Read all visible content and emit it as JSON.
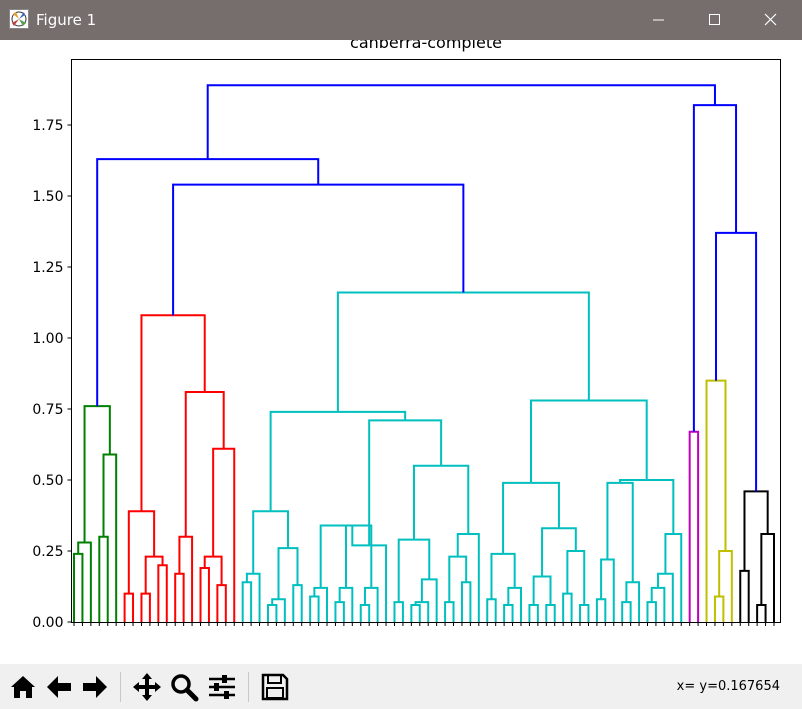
{
  "window": {
    "title": "Figure 1"
  },
  "toolbar": {
    "buttons": [
      {
        "name": "home",
        "icon": "home-icon"
      },
      {
        "name": "back",
        "icon": "arrow-left-icon"
      },
      {
        "name": "forward",
        "icon": "arrow-right-icon"
      },
      {
        "name": "pan",
        "icon": "move-icon"
      },
      {
        "name": "zoom",
        "icon": "zoom-icon"
      },
      {
        "name": "configure",
        "icon": "sliders-icon"
      },
      {
        "name": "save",
        "icon": "save-icon"
      }
    ],
    "status": "x= y=0.167654"
  },
  "chart_data": {
    "type": "dendrogram",
    "title": "canberra-complete",
    "ylim": [
      0,
      1.97
    ],
    "yticks": [
      "0.00",
      "0.25",
      "0.50",
      "0.75",
      "1.00",
      "1.25",
      "1.50",
      "1.75"
    ],
    "colors": {
      "green": "#008000",
      "red": "#ff0000",
      "cyan": "#00bfbf",
      "magenta": "#bf00bf",
      "yellow": "#bfbf00",
      "black": "#000000",
      "blue": "#0000ff"
    },
    "n_leaves": 84,
    "merges": [
      {
        "l": 0,
        "r": 1,
        "h": 0.24,
        "c": "green"
      },
      {
        "l": "n0",
        "r": 2,
        "h": 0.28,
        "c": "green"
      },
      {
        "l": 3,
        "r": 4,
        "h": 0.3,
        "c": "green"
      },
      {
        "l": 5,
        "r": "n2",
        "h": 0.59,
        "c": "green"
      },
      {
        "l": "n1",
        "r": "n3",
        "h": 0.76,
        "c": "green"
      },
      {
        "l": 6,
        "r": 7,
        "h": 0.1,
        "c": "red"
      },
      {
        "l": 8,
        "r": 9,
        "h": 0.1,
        "c": "red"
      },
      {
        "l": 10,
        "r": 11,
        "h": 0.2,
        "c": "red"
      },
      {
        "l": "n6",
        "r": "n7",
        "h": 0.23,
        "c": "red"
      },
      {
        "l": "n5",
        "r": "n8",
        "h": 0.39,
        "c": "red"
      },
      {
        "l": 12,
        "r": 13,
        "h": 0.17,
        "c": "red"
      },
      {
        "l": "n10",
        "r": 14,
        "h": 0.3,
        "c": "red"
      },
      {
        "l": 15,
        "r": 16,
        "h": 0.19,
        "c": "red"
      },
      {
        "l": 17,
        "r": 18,
        "h": 0.13,
        "c": "red"
      },
      {
        "l": "n12",
        "r": "n13",
        "h": 0.23,
        "c": "red"
      },
      {
        "l": "n14",
        "r": 19,
        "h": 0.61,
        "c": "red"
      },
      {
        "l": "n11",
        "r": "n15",
        "h": 0.81,
        "c": "red"
      },
      {
        "l": "n9",
        "r": "n16",
        "h": 1.08,
        "c": "red"
      },
      {
        "l": 20,
        "r": 21,
        "h": 0.14,
        "c": "cyan"
      },
      {
        "l": "n18",
        "r": 22,
        "h": 0.17,
        "c": "cyan"
      },
      {
        "l": 23,
        "r": 24,
        "h": 0.06,
        "c": "cyan"
      },
      {
        "l": "n20",
        "r": 25,
        "h": 0.08,
        "c": "cyan"
      },
      {
        "l": 26,
        "r": 27,
        "h": 0.13,
        "c": "cyan"
      },
      {
        "l": "n21",
        "r": "n22",
        "h": 0.26,
        "c": "cyan"
      },
      {
        "l": "n19",
        "r": "n23",
        "h": 0.39,
        "c": "cyan"
      },
      {
        "l": 28,
        "r": 29,
        "h": 0.09,
        "c": "cyan"
      },
      {
        "l": 30,
        "r": "n25",
        "h": 0.12,
        "c": "cyan"
      },
      {
        "l": 31,
        "r": 32,
        "h": 0.07,
        "c": "cyan"
      },
      {
        "l": "n27",
        "r": 33,
        "h": 0.12,
        "c": "cyan"
      },
      {
        "l": "n26",
        "r": "n28",
        "h": 0.34,
        "c": "cyan"
      },
      {
        "l": 34,
        "r": 35,
        "h": 0.06,
        "c": "cyan"
      },
      {
        "l": 36,
        "r": "n30",
        "h": 0.12,
        "c": "cyan"
      },
      {
        "l": "n29",
        "r": "n31",
        "h": 0.34,
        "c": "cyan"
      },
      {
        "l": "n32",
        "r": 37,
        "h": 0.27,
        "c": "cyan"
      },
      {
        "l": 38,
        "r": 39,
        "h": 0.07,
        "c": "cyan"
      },
      {
        "l": 40,
        "r": 41,
        "h": 0.06,
        "c": "cyan"
      },
      {
        "l": "n35",
        "r": 42,
        "h": 0.07,
        "c": "cyan"
      },
      {
        "l": 43,
        "r": "n36",
        "h": 0.15,
        "c": "cyan"
      },
      {
        "l": "n34",
        "r": "n37",
        "h": 0.29,
        "c": "cyan"
      },
      {
        "l": 44,
        "r": 45,
        "h": 0.07,
        "c": "cyan"
      },
      {
        "l": 46,
        "r": 47,
        "h": 0.14,
        "c": "cyan"
      },
      {
        "l": "n39",
        "r": "n40",
        "h": 0.23,
        "c": "cyan"
      },
      {
        "l": 48,
        "r": "n41",
        "h": 0.31,
        "c": "cyan"
      },
      {
        "l": "n38",
        "r": "n42",
        "h": 0.55,
        "c": "cyan"
      },
      {
        "l": "n33",
        "r": "n43",
        "h": 0.71,
        "c": "cyan"
      },
      {
        "l": "n24",
        "r": "n44",
        "h": 0.74,
        "c": "cyan"
      },
      {
        "l": 49,
        "r": 50,
        "h": 0.08,
        "c": "cyan"
      },
      {
        "l": 51,
        "r": 52,
        "h": 0.06,
        "c": "cyan"
      },
      {
        "l": "n47",
        "r": 53,
        "h": 0.12,
        "c": "cyan"
      },
      {
        "l": "n46",
        "r": "n48",
        "h": 0.24,
        "c": "cyan"
      },
      {
        "l": 54,
        "r": 55,
        "h": 0.06,
        "c": "cyan"
      },
      {
        "l": 56,
        "r": 57,
        "h": 0.06,
        "c": "cyan"
      },
      {
        "l": "n50",
        "r": "n51",
        "h": 0.16,
        "c": "cyan"
      },
      {
        "l": 58,
        "r": 59,
        "h": 0.1,
        "c": "cyan"
      },
      {
        "l": 60,
        "r": 61,
        "h": 0.06,
        "c": "cyan"
      },
      {
        "l": "n53",
        "r": "n54",
        "h": 0.25,
        "c": "cyan"
      },
      {
        "l": "n52",
        "r": "n55",
        "h": 0.33,
        "c": "cyan"
      },
      {
        "l": "n49",
        "r": "n56",
        "h": 0.49,
        "c": "cyan"
      },
      {
        "l": 62,
        "r": 63,
        "h": 0.08,
        "c": "cyan"
      },
      {
        "l": 64,
        "r": "n58",
        "h": 0.22,
        "c": "cyan"
      },
      {
        "l": 65,
        "r": 66,
        "h": 0.07,
        "c": "cyan"
      },
      {
        "l": 67,
        "r": "n60",
        "h": 0.14,
        "c": "cyan"
      },
      {
        "l": "n59",
        "r": "n61",
        "h": 0.49,
        "c": "cyan"
      },
      {
        "l": 68,
        "r": 69,
        "h": 0.07,
        "c": "cyan"
      },
      {
        "l": 70,
        "r": "n63",
        "h": 0.12,
        "c": "cyan"
      },
      {
        "l": 71,
        "r": "n64",
        "h": 0.17,
        "c": "cyan"
      },
      {
        "l": "n65",
        "r": 72,
        "h": 0.31,
        "c": "cyan"
      },
      {
        "l": "n62",
        "r": "n66",
        "h": 0.5,
        "c": "cyan"
      },
      {
        "l": "n57",
        "r": "n67",
        "h": 0.78,
        "c": "cyan"
      },
      {
        "l": "n45",
        "r": "n68",
        "h": 1.16,
        "c": "cyan"
      },
      {
        "l": "n17",
        "r": "n69",
        "h": 1.54,
        "c": "blue"
      },
      {
        "l": "n4",
        "r": "n70",
        "h": 1.63,
        "c": "blue"
      },
      {
        "l": 73,
        "r": 74,
        "h": 0.67,
        "c": "magenta"
      },
      {
        "l": 76,
        "r": 77,
        "h": 0.09,
        "c": "yellow"
      },
      {
        "l": "n73",
        "r": 78,
        "h": 0.25,
        "c": "yellow"
      },
      {
        "l": 75,
        "r": "n74",
        "h": 0.85,
        "c": "yellow"
      },
      {
        "l": 79,
        "r": 80,
        "h": 0.18,
        "c": "black"
      },
      {
        "l": 81,
        "r": 82,
        "h": 0.06,
        "c": "black"
      },
      {
        "l": "n77",
        "r": 83,
        "h": 0.31,
        "c": "black"
      },
      {
        "l": "n76",
        "r": "n78",
        "h": 0.46,
        "c": "black"
      }
    ]
  }
}
